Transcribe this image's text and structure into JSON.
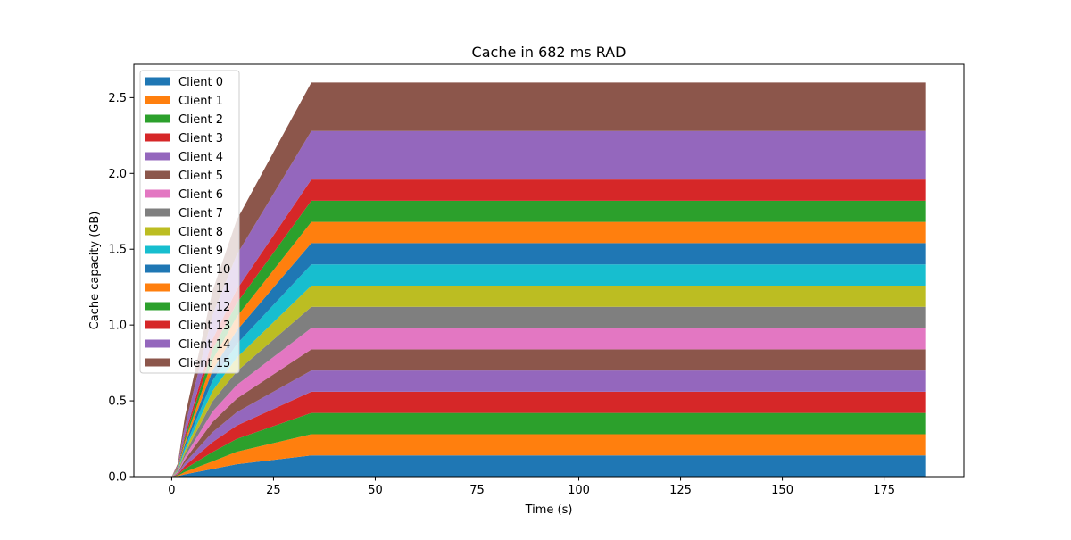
{
  "chart_data": {
    "type": "area",
    "stacked": true,
    "title": "Cache in  682 ms RAD",
    "xlabel": "Time (s)",
    "ylabel": "Cache capacity (GB)",
    "xlim": [
      -9.3,
      194.6
    ],
    "ylim": [
      0,
      2.72
    ],
    "xticks": [
      0,
      25,
      50,
      75,
      100,
      125,
      150,
      175
    ],
    "yticks": [
      0.0,
      0.5,
      1.0,
      1.5,
      2.0,
      2.5
    ],
    "xtick_labels": [
      "0",
      "25",
      "50",
      "75",
      "100",
      "125",
      "150",
      "175"
    ],
    "ytick_labels": [
      "0.0",
      "0.5",
      "1.0",
      "1.5",
      "2.0",
      "2.5"
    ],
    "grid": false,
    "legend_position": "top-left",
    "x": [
      0,
      1.5,
      3.2,
      10,
      16,
      34.3,
      185.1
    ],
    "series": [
      {
        "name": "Client 0",
        "color": "#1f77b4",
        "values": [
          0,
          0.003,
          0.015,
          0.05,
          0.082,
          0.14,
          0.14
        ]
      },
      {
        "name": "Client 1",
        "color": "#ff7f0e",
        "values": [
          0,
          0.003,
          0.015,
          0.05,
          0.082,
          0.14,
          0.14
        ]
      },
      {
        "name": "Client 2",
        "color": "#2ca02c",
        "values": [
          0,
          0.005,
          0.02,
          0.062,
          0.085,
          0.14,
          0.14
        ]
      },
      {
        "name": "Client 3",
        "color": "#d62728",
        "values": [
          0,
          0.005,
          0.02,
          0.065,
          0.088,
          0.14,
          0.14
        ]
      },
      {
        "name": "Client 4",
        "color": "#9467bd",
        "values": [
          0,
          0.005,
          0.02,
          0.065,
          0.088,
          0.14,
          0.14
        ]
      },
      {
        "name": "Client 5",
        "color": "#8c564b",
        "values": [
          0,
          0.005,
          0.02,
          0.068,
          0.09,
          0.14,
          0.14
        ]
      },
      {
        "name": "Client 6",
        "color": "#e377c2",
        "values": [
          0,
          0.005,
          0.02,
          0.068,
          0.09,
          0.14,
          0.14
        ]
      },
      {
        "name": "Client 7",
        "color": "#7f7f7f",
        "values": [
          0,
          0.005,
          0.02,
          0.068,
          0.09,
          0.14,
          0.14
        ]
      },
      {
        "name": "Client 8",
        "color": "#bcbd22",
        "values": [
          0,
          0.005,
          0.02,
          0.068,
          0.09,
          0.14,
          0.14
        ]
      },
      {
        "name": "Client 9",
        "color": "#17becf",
        "values": [
          0,
          0.005,
          0.02,
          0.068,
          0.09,
          0.14,
          0.14
        ]
      },
      {
        "name": "Client 10",
        "color": "#1f77b4",
        "values": [
          0,
          0.005,
          0.02,
          0.068,
          0.09,
          0.14,
          0.14
        ]
      },
      {
        "name": "Client 11",
        "color": "#ff7f0e",
        "values": [
          0,
          0.005,
          0.02,
          0.068,
          0.09,
          0.14,
          0.14
        ]
      },
      {
        "name": "Client 12",
        "color": "#2ca02c",
        "values": [
          0,
          0.005,
          0.02,
          0.068,
          0.09,
          0.14,
          0.14
        ]
      },
      {
        "name": "Client 13",
        "color": "#d62728",
        "values": [
          0,
          0.005,
          0.02,
          0.068,
          0.09,
          0.14,
          0.14
        ]
      },
      {
        "name": "Client 14",
        "color": "#9467bd",
        "values": [
          0,
          0.01,
          0.06,
          0.16,
          0.23,
          0.32,
          0.32
        ]
      },
      {
        "name": "Client 15",
        "color": "#8c564b",
        "values": [
          0,
          0.01,
          0.06,
          0.16,
          0.23,
          0.32,
          0.32
        ]
      }
    ]
  }
}
